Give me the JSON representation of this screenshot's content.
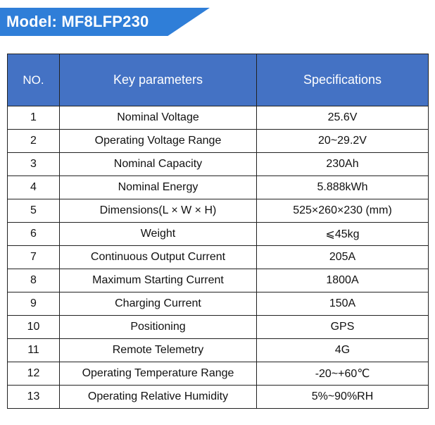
{
  "header": {
    "model_title": "Model: MF8LFP230",
    "banner_color": "#2f7ed8"
  },
  "table": {
    "header_color": "#4472c4",
    "columns": {
      "no": "NO.",
      "param": "Key parameters",
      "spec": "Specifications"
    },
    "rows": [
      {
        "no": "1",
        "param": "Nominal Voltage",
        "spec": "25.6V"
      },
      {
        "no": "2",
        "param": "Operating Voltage Range",
        "spec": "20~29.2V"
      },
      {
        "no": "3",
        "param": "Nominal Capacity",
        "spec": "230Ah"
      },
      {
        "no": "4",
        "param": "Nominal Energy",
        "spec": "5.888kWh"
      },
      {
        "no": "5",
        "param": "Dimensions(L × W × H)",
        "spec": "525×260×230 (mm)"
      },
      {
        "no": "6",
        "param": "Weight",
        "spec": "⩽45kg"
      },
      {
        "no": "7",
        "param": "Continuous Output Current",
        "spec": "205A"
      },
      {
        "no": "8",
        "param": "Maximum Starting Current",
        "spec": "1800A"
      },
      {
        "no": "9",
        "param": "Charging Current",
        "spec": "150A"
      },
      {
        "no": "10",
        "param": "Positioning",
        "spec": "GPS"
      },
      {
        "no": "11",
        "param": "Remote Telemetry",
        "spec": "4G"
      },
      {
        "no": "12",
        "param": "Operating Temperature Range",
        "spec": "-20~+60℃"
      },
      {
        "no": "13",
        "param": "Operating Relative Humidity",
        "spec": "5%~90%RH"
      }
    ]
  }
}
